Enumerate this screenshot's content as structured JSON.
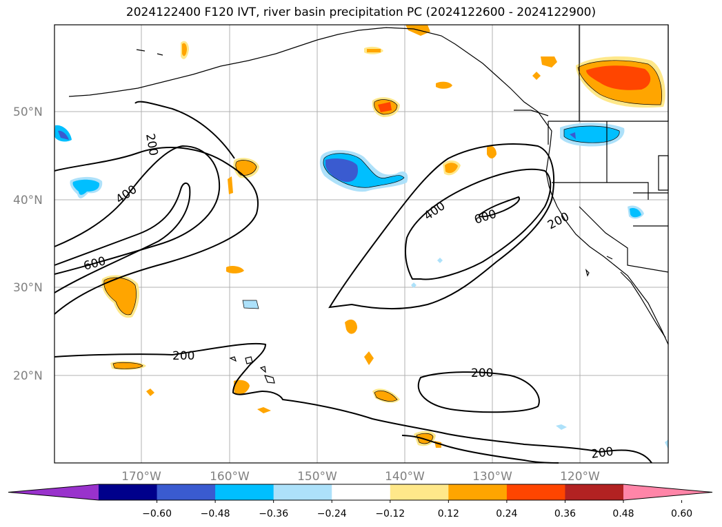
{
  "title": "2024122400 F120 IVT, river basin precipitation PC (2024122600 - 2024122900)",
  "map": {
    "lat_labels": [
      "50°N",
      "40°N",
      "30°N",
      "20°N"
    ],
    "lon_labels": [
      "170°W",
      "160°W",
      "150°W",
      "140°W",
      "130°W",
      "120°W"
    ],
    "contour_labels": [
      {
        "id": "c200a",
        "text": "200"
      },
      {
        "id": "c400a",
        "text": "400"
      },
      {
        "id": "c600a",
        "text": "600"
      },
      {
        "id": "c200b",
        "text": "200"
      },
      {
        "id": "c400b",
        "text": "400"
      },
      {
        "id": "c600b",
        "text": "600"
      },
      {
        "id": "c200c",
        "text": "200"
      },
      {
        "id": "c200d",
        "text": "200"
      },
      {
        "id": "c200e",
        "text": "200"
      }
    ]
  },
  "colorbar": {
    "colors": [
      "#9932CC",
      "#00008B",
      "#3A5BD0",
      "#00BFFF",
      "#ADE1FA",
      "#FFFFFF",
      "#FFE88A",
      "#FFA500",
      "#FF4500",
      "#B22222",
      "#FF85A8"
    ],
    "tick_labels": [
      "−0.60",
      "−0.48",
      "−0.36",
      "−0.24",
      "−0.12",
      "0.12",
      "0.24",
      "0.36",
      "0.48",
      "0.60"
    ]
  }
}
